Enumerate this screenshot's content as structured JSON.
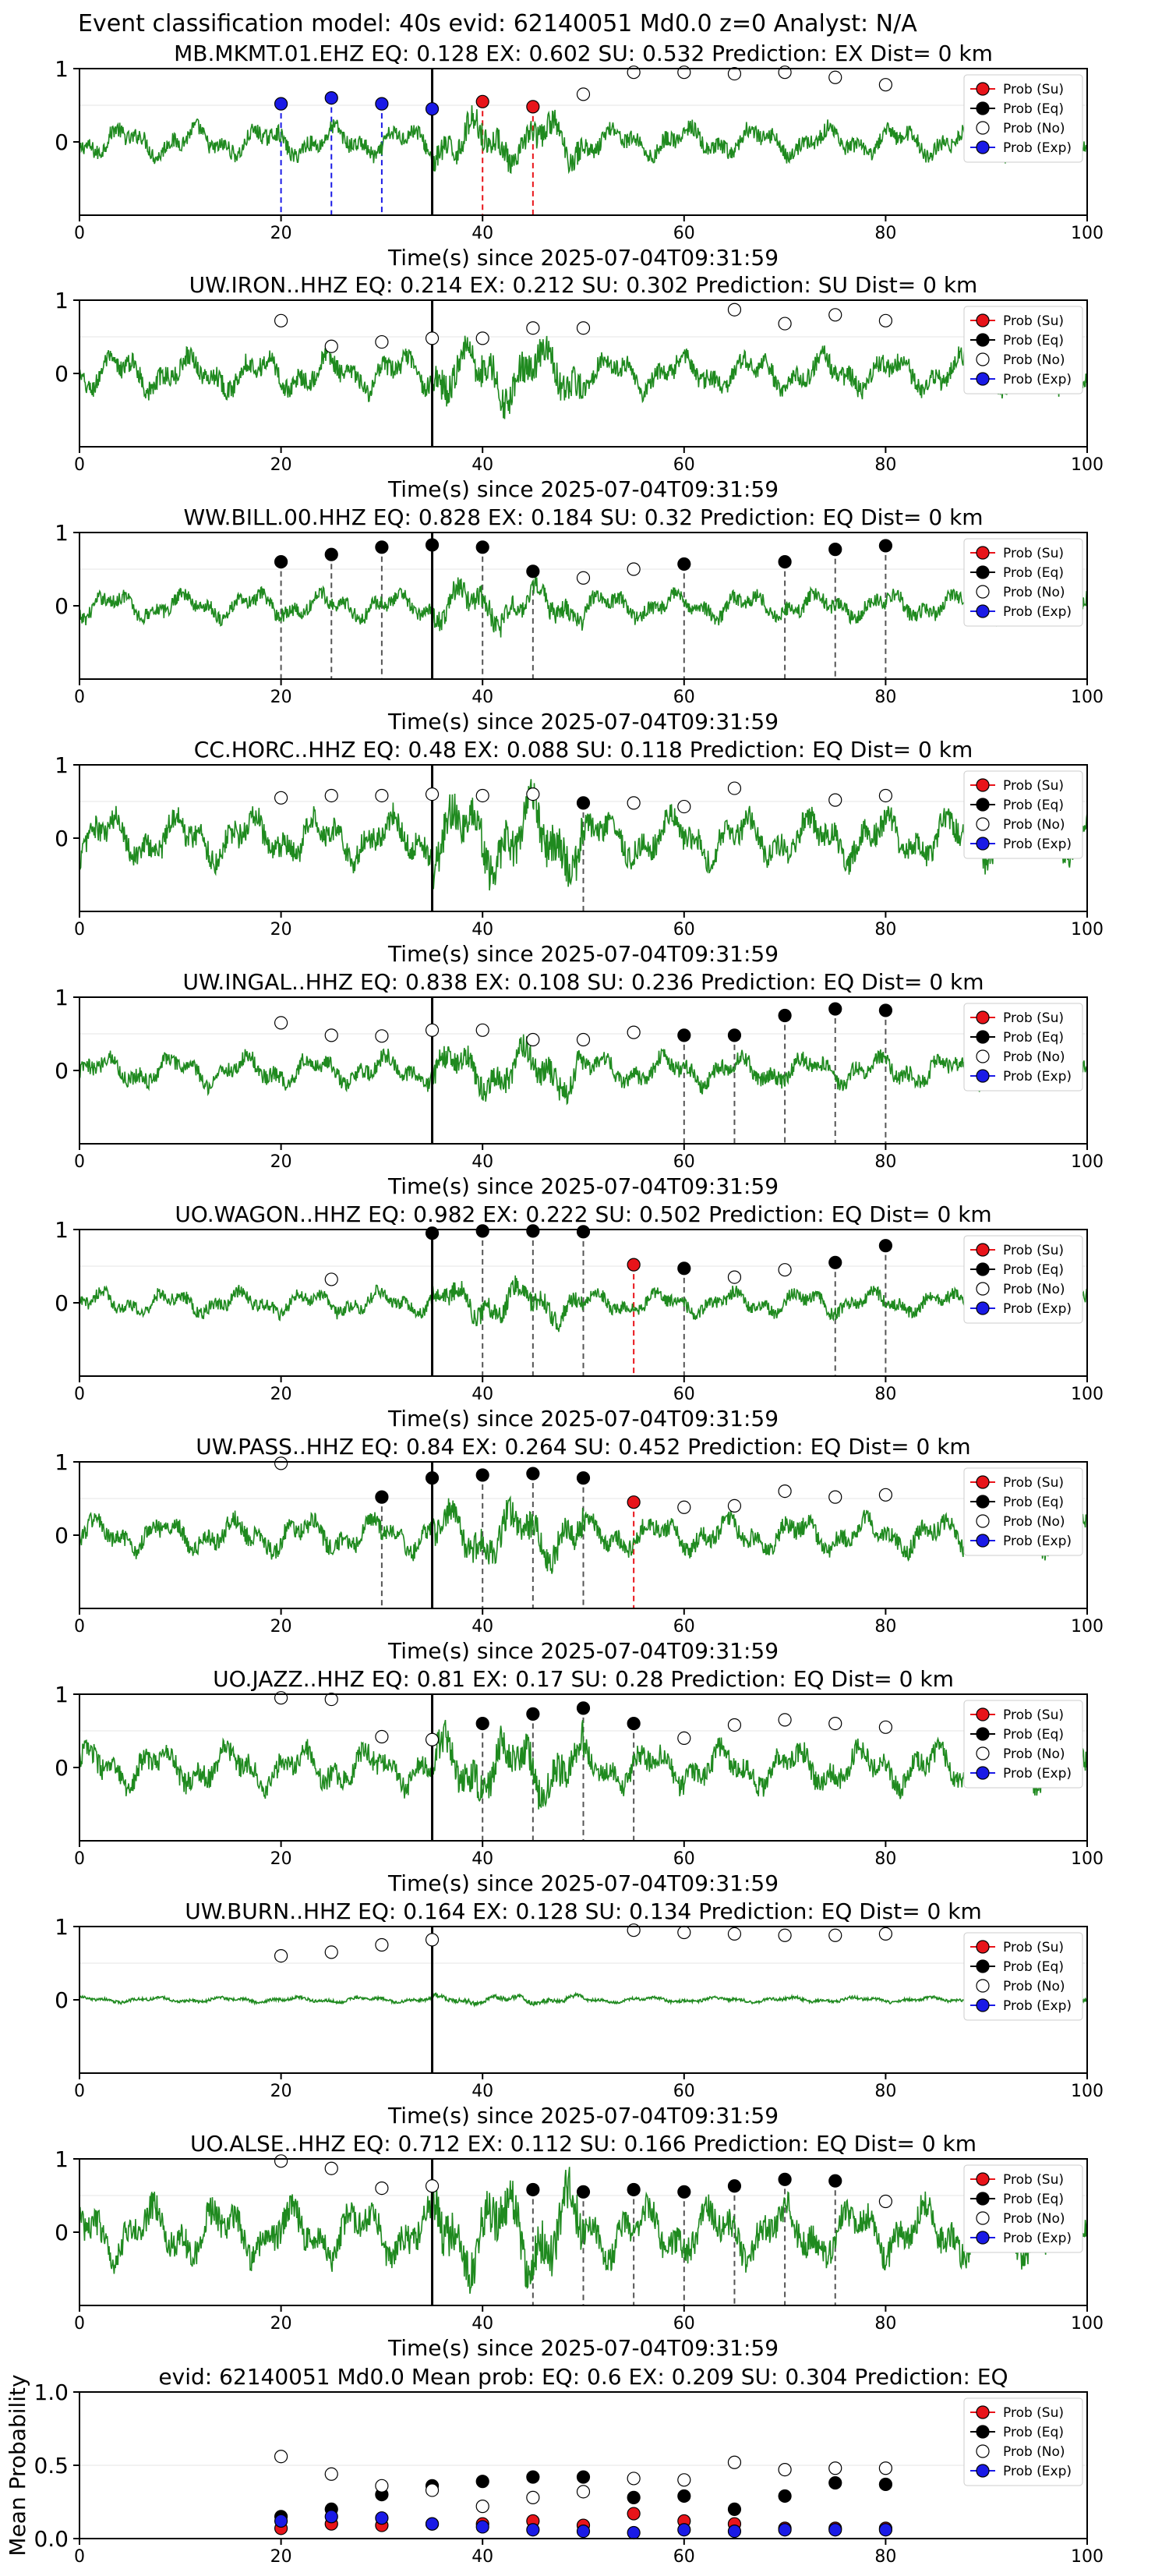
{
  "suptitle": "Event classification model: 40s evid: 62140051 Md0.0 z=0 Analyst: N/A",
  "legend": [
    "Prob (Su)",
    "Prob (Eq)",
    "Prob (No)",
    "Prob (Exp)"
  ],
  "colors": {
    "su": "#e8141a",
    "eq": "#000000",
    "no": "#ffffff",
    "exp": "#1a1ae6",
    "waveform": "#1f8a1f",
    "exp_line": "#1a1ae6",
    "su_line": "#e8141a",
    "eq_line": "#555555"
  },
  "chart_data": [
    {
      "type": "line",
      "title": "MB.MKMT.01.EHZ   EQ: 0.128   EX: 0.602   SU: 0.532    Prediction: EX     Dist= 0 km",
      "xlabel": "Time(s) since 2025-07-04T09:31:59",
      "xlim": [
        0,
        100
      ],
      "ylim": [
        -1,
        1
      ],
      "xticks": [
        0,
        20,
        40,
        60,
        80,
        100
      ],
      "yticks": [
        0,
        1
      ],
      "onset": 35,
      "amp": 0.45,
      "points": [
        {
          "x": 20,
          "y": 0.52,
          "c": "exp"
        },
        {
          "x": 25,
          "y": 0.6,
          "c": "exp"
        },
        {
          "x": 30,
          "y": 0.52,
          "c": "exp"
        },
        {
          "x": 35,
          "y": 0.45,
          "c": "exp"
        },
        {
          "x": 40,
          "y": 0.55,
          "c": "su"
        },
        {
          "x": 45,
          "y": 0.48,
          "c": "su"
        },
        {
          "x": 50,
          "y": 0.65,
          "c": "no"
        },
        {
          "x": 55,
          "y": 0.95,
          "c": "no"
        },
        {
          "x": 60,
          "y": 0.95,
          "c": "no"
        },
        {
          "x": 65,
          "y": 0.93,
          "c": "no"
        },
        {
          "x": 70,
          "y": 0.95,
          "c": "no"
        },
        {
          "x": 75,
          "y": 0.88,
          "c": "no"
        },
        {
          "x": 80,
          "y": 0.78,
          "c": "no"
        }
      ]
    },
    {
      "type": "line",
      "title": "UW.IRON..HHZ   EQ: 0.214   EX: 0.212   SU: 0.302    Prediction: SU     Dist= 0 km",
      "xlabel": "Time(s) since 2025-07-04T09:31:59",
      "xlim": [
        0,
        100
      ],
      "ylim": [
        -1,
        1
      ],
      "xticks": [
        0,
        20,
        40,
        60,
        80,
        100
      ],
      "yticks": [
        0,
        1
      ],
      "onset": 35,
      "amp": 0.55,
      "points": [
        {
          "x": 20,
          "y": 0.72,
          "c": "no"
        },
        {
          "x": 25,
          "y": 0.37,
          "c": "no"
        },
        {
          "x": 30,
          "y": 0.43,
          "c": "no"
        },
        {
          "x": 35,
          "y": 0.48,
          "c": "no"
        },
        {
          "x": 40,
          "y": 0.48,
          "c": "no"
        },
        {
          "x": 45,
          "y": 0.62,
          "c": "no"
        },
        {
          "x": 50,
          "y": 0.62,
          "c": "no"
        },
        {
          "x": 65,
          "y": 0.87,
          "c": "no"
        },
        {
          "x": 70,
          "y": 0.68,
          "c": "no"
        },
        {
          "x": 75,
          "y": 0.8,
          "c": "no"
        },
        {
          "x": 80,
          "y": 0.72,
          "c": "no"
        }
      ]
    },
    {
      "type": "line",
      "title": "WW.BILL.00.HHZ   EQ: 0.828   EX: 0.184   SU: 0.32    Prediction: EQ     Dist= 0 km",
      "xlabel": "Time(s) since 2025-07-04T09:31:59",
      "xlim": [
        0,
        100
      ],
      "ylim": [
        -1,
        1
      ],
      "xticks": [
        0,
        20,
        40,
        60,
        80,
        100
      ],
      "yticks": [
        0,
        1
      ],
      "onset": 35,
      "amp": 0.4,
      "points": [
        {
          "x": 20,
          "y": 0.6,
          "c": "eq"
        },
        {
          "x": 25,
          "y": 0.7,
          "c": "eq"
        },
        {
          "x": 30,
          "y": 0.8,
          "c": "eq"
        },
        {
          "x": 35,
          "y": 0.83,
          "c": "eq"
        },
        {
          "x": 40,
          "y": 0.8,
          "c": "eq"
        },
        {
          "x": 45,
          "y": 0.47,
          "c": "eq"
        },
        {
          "x": 50,
          "y": 0.38,
          "c": "no"
        },
        {
          "x": 55,
          "y": 0.5,
          "c": "no"
        },
        {
          "x": 60,
          "y": 0.57,
          "c": "eq"
        },
        {
          "x": 70,
          "y": 0.6,
          "c": "eq"
        },
        {
          "x": 75,
          "y": 0.77,
          "c": "eq"
        },
        {
          "x": 80,
          "y": 0.82,
          "c": "eq"
        }
      ]
    },
    {
      "type": "line",
      "title": "CC.HORC..HHZ   EQ: 0.48   EX: 0.088   SU: 0.118    Prediction: EQ     Dist= 0 km",
      "xlabel": "Time(s) since 2025-07-04T09:31:59",
      "xlim": [
        0,
        100
      ],
      "ylim": [
        -1,
        1
      ],
      "xticks": [
        0,
        20,
        40,
        60,
        80,
        100
      ],
      "yticks": [
        0,
        1
      ],
      "onset": 35,
      "amp": 0.7,
      "points": [
        {
          "x": 20,
          "y": 0.55,
          "c": "no"
        },
        {
          "x": 25,
          "y": 0.58,
          "c": "no"
        },
        {
          "x": 30,
          "y": 0.58,
          "c": "no"
        },
        {
          "x": 35,
          "y": 0.6,
          "c": "no"
        },
        {
          "x": 40,
          "y": 0.58,
          "c": "no"
        },
        {
          "x": 45,
          "y": 0.6,
          "c": "no"
        },
        {
          "x": 50,
          "y": 0.48,
          "c": "eq"
        },
        {
          "x": 55,
          "y": 0.48,
          "c": "no"
        },
        {
          "x": 60,
          "y": 0.43,
          "c": "no"
        },
        {
          "x": 65,
          "y": 0.68,
          "c": "no"
        },
        {
          "x": 75,
          "y": 0.52,
          "c": "no"
        },
        {
          "x": 80,
          "y": 0.58,
          "c": "no"
        }
      ]
    },
    {
      "type": "line",
      "title": "UW.INGAL..HHZ   EQ: 0.838   EX: 0.108   SU: 0.236    Prediction: EQ     Dist= 0 km",
      "xlabel": "Time(s) since 2025-07-04T09:31:59",
      "xlim": [
        0,
        100
      ],
      "ylim": [
        -1,
        1
      ],
      "xticks": [
        0,
        20,
        40,
        60,
        80,
        100
      ],
      "yticks": [
        0,
        1
      ],
      "onset": 35,
      "amp": 0.45,
      "points": [
        {
          "x": 20,
          "y": 0.65,
          "c": "no"
        },
        {
          "x": 25,
          "y": 0.48,
          "c": "no"
        },
        {
          "x": 30,
          "y": 0.47,
          "c": "no"
        },
        {
          "x": 35,
          "y": 0.55,
          "c": "no"
        },
        {
          "x": 40,
          "y": 0.55,
          "c": "no"
        },
        {
          "x": 45,
          "y": 0.42,
          "c": "no"
        },
        {
          "x": 50,
          "y": 0.42,
          "c": "no"
        },
        {
          "x": 55,
          "y": 0.52,
          "c": "no"
        },
        {
          "x": 60,
          "y": 0.48,
          "c": "eq"
        },
        {
          "x": 65,
          "y": 0.48,
          "c": "eq"
        },
        {
          "x": 70,
          "y": 0.75,
          "c": "eq"
        },
        {
          "x": 75,
          "y": 0.84,
          "c": "eq"
        },
        {
          "x": 80,
          "y": 0.82,
          "c": "eq"
        }
      ]
    },
    {
      "type": "line",
      "title": "UO.WAGON..HHZ   EQ: 0.982   EX: 0.222   SU: 0.502    Prediction: EQ     Dist= 0 km",
      "xlabel": "Time(s) since 2025-07-04T09:31:59",
      "xlim": [
        0,
        100
      ],
      "ylim": [
        -1,
        1
      ],
      "xticks": [
        0,
        20,
        40,
        60,
        80,
        100
      ],
      "yticks": [
        0,
        1
      ],
      "onset": 35,
      "amp": 0.35,
      "points": [
        {
          "x": 25,
          "y": 0.32,
          "c": "no"
        },
        {
          "x": 35,
          "y": 0.95,
          "c": "eq"
        },
        {
          "x": 40,
          "y": 0.98,
          "c": "eq"
        },
        {
          "x": 45,
          "y": 0.98,
          "c": "eq"
        },
        {
          "x": 50,
          "y": 0.97,
          "c": "eq"
        },
        {
          "x": 55,
          "y": 0.52,
          "c": "su"
        },
        {
          "x": 60,
          "y": 0.47,
          "c": "eq"
        },
        {
          "x": 65,
          "y": 0.35,
          "c": "no"
        },
        {
          "x": 70,
          "y": 0.45,
          "c": "no"
        },
        {
          "x": 75,
          "y": 0.55,
          "c": "eq"
        },
        {
          "x": 80,
          "y": 0.78,
          "c": "eq"
        }
      ]
    },
    {
      "type": "line",
      "title": "UW.PASS..HHZ   EQ: 0.84   EX: 0.264   SU: 0.452    Prediction: EQ     Dist= 0 km",
      "xlabel": "Time(s) since 2025-07-04T09:31:59",
      "xlim": [
        0,
        100
      ],
      "ylim": [
        -1,
        1
      ],
      "xticks": [
        0,
        20,
        40,
        60,
        80,
        100
      ],
      "yticks": [
        0,
        1
      ],
      "onset": 35,
      "amp": 0.5,
      "points": [
        {
          "x": 20,
          "y": 0.98,
          "c": "no"
        },
        {
          "x": 30,
          "y": 0.52,
          "c": "eq"
        },
        {
          "x": 35,
          "y": 0.78,
          "c": "eq"
        },
        {
          "x": 40,
          "y": 0.82,
          "c": "eq"
        },
        {
          "x": 45,
          "y": 0.84,
          "c": "eq"
        },
        {
          "x": 50,
          "y": 0.78,
          "c": "eq"
        },
        {
          "x": 55,
          "y": 0.45,
          "c": "su"
        },
        {
          "x": 60,
          "y": 0.38,
          "c": "no"
        },
        {
          "x": 65,
          "y": 0.4,
          "c": "no"
        },
        {
          "x": 70,
          "y": 0.6,
          "c": "no"
        },
        {
          "x": 75,
          "y": 0.52,
          "c": "no"
        },
        {
          "x": 80,
          "y": 0.55,
          "c": "no"
        }
      ]
    },
    {
      "type": "line",
      "title": "UO.JAZZ..HHZ   EQ: 0.81   EX: 0.17   SU: 0.28    Prediction: EQ     Dist= 0 km",
      "xlabel": "Time(s) since 2025-07-04T09:31:59",
      "xlim": [
        0,
        100
      ],
      "ylim": [
        -1,
        1
      ],
      "xticks": [
        0,
        20,
        40,
        60,
        80,
        100
      ],
      "yticks": [
        0,
        1
      ],
      "onset": 35,
      "amp": 0.6,
      "points": [
        {
          "x": 20,
          "y": 0.95,
          "c": "no"
        },
        {
          "x": 25,
          "y": 0.93,
          "c": "no"
        },
        {
          "x": 30,
          "y": 0.42,
          "c": "no"
        },
        {
          "x": 35,
          "y": 0.38,
          "c": "no"
        },
        {
          "x": 40,
          "y": 0.6,
          "c": "eq"
        },
        {
          "x": 45,
          "y": 0.73,
          "c": "eq"
        },
        {
          "x": 50,
          "y": 0.81,
          "c": "eq"
        },
        {
          "x": 55,
          "y": 0.6,
          "c": "eq"
        },
        {
          "x": 60,
          "y": 0.4,
          "c": "no"
        },
        {
          "x": 65,
          "y": 0.58,
          "c": "no"
        },
        {
          "x": 70,
          "y": 0.65,
          "c": "no"
        },
        {
          "x": 75,
          "y": 0.6,
          "c": "no"
        },
        {
          "x": 80,
          "y": 0.55,
          "c": "no"
        }
      ]
    },
    {
      "type": "line",
      "title": "UW.BURN..HHZ   EQ: 0.164   EX: 0.128   SU: 0.134    Prediction: EQ     Dist= 0 km",
      "xlabel": "Time(s) since 2025-07-04T09:31:59",
      "xlim": [
        0,
        100
      ],
      "ylim": [
        -1,
        1
      ],
      "xticks": [
        0,
        20,
        40,
        60,
        80,
        100
      ],
      "yticks": [
        0,
        1
      ],
      "onset": 35,
      "amp": 0.08,
      "points": [
        {
          "x": 20,
          "y": 0.6,
          "c": "no"
        },
        {
          "x": 25,
          "y": 0.65,
          "c": "no"
        },
        {
          "x": 30,
          "y": 0.75,
          "c": "no"
        },
        {
          "x": 35,
          "y": 0.82,
          "c": "no"
        },
        {
          "x": 55,
          "y": 0.95,
          "c": "no"
        },
        {
          "x": 60,
          "y": 0.92,
          "c": "no"
        },
        {
          "x": 65,
          "y": 0.9,
          "c": "no"
        },
        {
          "x": 70,
          "y": 0.88,
          "c": "no"
        },
        {
          "x": 75,
          "y": 0.88,
          "c": "no"
        },
        {
          "x": 80,
          "y": 0.9,
          "c": "no"
        }
      ]
    },
    {
      "type": "line",
      "title": "UO.ALSE..HHZ   EQ: 0.712   EX: 0.112   SU: 0.166    Prediction: EQ     Dist= 0 km",
      "xlabel": "Time(s) since 2025-07-04T09:31:59",
      "xlim": [
        0,
        100
      ],
      "ylim": [
        -1,
        1
      ],
      "xticks": [
        0,
        20,
        40,
        60,
        80,
        100
      ],
      "yticks": [
        0,
        1
      ],
      "onset": 35,
      "amp": 0.8,
      "points": [
        {
          "x": 20,
          "y": 0.97,
          "c": "no"
        },
        {
          "x": 25,
          "y": 0.87,
          "c": "no"
        },
        {
          "x": 30,
          "y": 0.6,
          "c": "no"
        },
        {
          "x": 35,
          "y": 0.63,
          "c": "no"
        },
        {
          "x": 45,
          "y": 0.58,
          "c": "eq"
        },
        {
          "x": 50,
          "y": 0.55,
          "c": "eq"
        },
        {
          "x": 55,
          "y": 0.58,
          "c": "eq"
        },
        {
          "x": 60,
          "y": 0.55,
          "c": "eq"
        },
        {
          "x": 65,
          "y": 0.63,
          "c": "eq"
        },
        {
          "x": 70,
          "y": 0.72,
          "c": "eq"
        },
        {
          "x": 75,
          "y": 0.7,
          "c": "eq"
        },
        {
          "x": 80,
          "y": 0.42,
          "c": "no"
        }
      ]
    },
    {
      "type": "scatter",
      "title": "evid: 62140051   Md0.0    Mean prob:    EQ: 0.6   EX: 0.209   SU: 0.304    Prediction: EQ",
      "xlabel": "",
      "ylabel": "Mean Probability",
      "xlim": [
        0,
        100
      ],
      "ylim": [
        0,
        1
      ],
      "xticks": [
        0,
        20,
        40,
        60,
        80,
        100
      ],
      "yticks": [
        0.0,
        0.5,
        1.0
      ],
      "x": [
        20,
        25,
        30,
        35,
        40,
        45,
        50,
        55,
        60,
        65,
        70,
        75,
        80
      ],
      "series": [
        {
          "name": "Prob (Su)",
          "c": "su",
          "values": [
            0.07,
            0.1,
            0.09,
            0.1,
            0.1,
            0.12,
            0.09,
            0.17,
            0.12,
            0.1,
            0.07,
            0.07,
            0.07
          ]
        },
        {
          "name": "Prob (Eq)",
          "c": "eq",
          "values": [
            0.15,
            0.2,
            0.3,
            0.36,
            0.39,
            0.42,
            0.42,
            0.28,
            0.29,
            0.2,
            0.29,
            0.38,
            0.37
          ]
        },
        {
          "name": "Prob (No)",
          "c": "no",
          "values": [
            0.56,
            0.44,
            0.36,
            0.33,
            0.22,
            0.28,
            0.32,
            0.41,
            0.4,
            0.52,
            0.47,
            0.48,
            0.48
          ]
        },
        {
          "name": "Prob (Exp)",
          "c": "exp",
          "values": [
            0.12,
            0.15,
            0.14,
            0.1,
            0.08,
            0.06,
            0.05,
            0.04,
            0.06,
            0.05,
            0.06,
            0.06,
            0.06
          ]
        }
      ]
    }
  ]
}
